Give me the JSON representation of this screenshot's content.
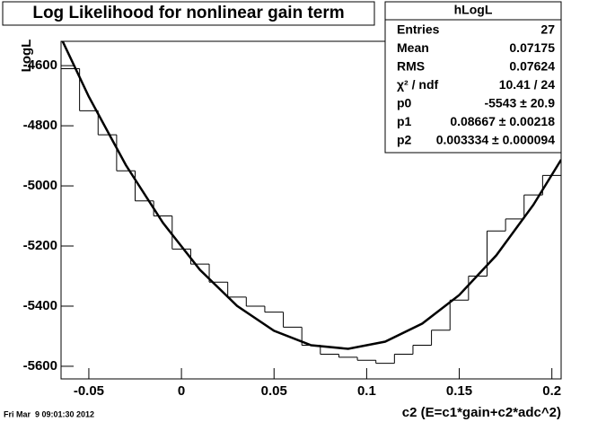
{
  "chart_data": {
    "type": "histogram",
    "title": "Log Likelihood for nonlinear gain term",
    "x_label": "c2 (E=c1*gain+c2*adc^2)",
    "y_label": "LogL",
    "timestamp": "Fri Mar  9 09:01:30 2012",
    "bins": [
      -0.065,
      -0.055,
      -0.045,
      -0.035,
      -0.025,
      -0.015,
      -0.005,
      0.005,
      0.015,
      0.025,
      0.035,
      0.045,
      0.055,
      0.065,
      0.075,
      0.085,
      0.095,
      0.105,
      0.115,
      0.125,
      0.135,
      0.145,
      0.155,
      0.165,
      0.175,
      0.185,
      0.195,
      0.205
    ],
    "values": [
      -4610,
      -4750,
      -4830,
      -4950,
      -5050,
      -5100,
      -5210,
      -5260,
      -5320,
      -5370,
      -5400,
      -5420,
      -5470,
      -5530,
      -5560,
      -5570,
      -5580,
      -5590,
      -5560,
      -5530,
      -5480,
      -5380,
      -5300,
      -5150,
      -5110,
      -5030,
      -4965
    ],
    "color": "#000000",
    "fit": {
      "x": [
        -0.065,
        -0.05,
        -0.03,
        -0.01,
        0.01,
        0.03,
        0.05,
        0.07,
        0.09,
        0.11,
        0.13,
        0.15,
        0.17,
        0.19,
        0.205
      ],
      "values": [
        -4508,
        -4703,
        -4931,
        -5123,
        -5279,
        -5399,
        -5482,
        -5530,
        -5542,
        -5518,
        -5458,
        -5363,
        -5231,
        -5063,
        -4913
      ],
      "color": "#000000"
    },
    "xlim": [
      -0.065,
      0.205
    ],
    "ylim": [
      -5642,
      -4519
    ],
    "xticks": [
      -0.05,
      0,
      0.05,
      0.1,
      0.15,
      0.2
    ],
    "yticks": [
      -5600,
      -5400,
      -5200,
      -5000,
      -4800,
      -4600
    ],
    "stats": {
      "name": "hLogL",
      "rows": [
        {
          "label": "Entries",
          "value": "27"
        },
        {
          "label": "Mean",
          "value": "0.07175"
        },
        {
          "label": "RMS",
          "value": "0.07624"
        },
        {
          "label": "χ² / ndf",
          "value": "10.41 / 24"
        },
        {
          "label": "p0",
          "value": "-5543 ± 20.9"
        },
        {
          "label": "p1",
          "value": "0.08667 ± 0.00218"
        },
        {
          "label": "p2",
          "value": "0.003334 ± 0.000094"
        }
      ]
    }
  }
}
